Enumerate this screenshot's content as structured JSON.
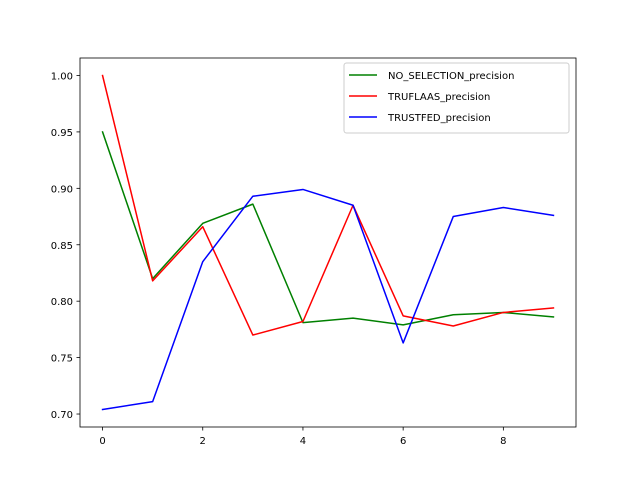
{
  "chart_data": {
    "type": "line",
    "title": "",
    "xlabel": "",
    "ylabel": "",
    "xlim": [
      -0.45,
      9.45
    ],
    "ylim": [
      0.6885,
      1.0155
    ],
    "x_ticks": [
      0,
      2,
      4,
      6,
      8
    ],
    "y_ticks": [
      0.7,
      0.75,
      0.8,
      0.85,
      0.9,
      0.95,
      1.0
    ],
    "y_tick_labels": [
      "0.70",
      "0.75",
      "0.80",
      "0.85",
      "0.90",
      "0.95",
      "1.00"
    ],
    "grid": false,
    "legend_position": "top-right",
    "x": [
      0,
      1,
      2,
      3,
      4,
      5,
      6,
      7,
      8,
      9
    ],
    "series": [
      {
        "name": "NO_SELECTION_precision",
        "color": "#008000",
        "values": [
          0.95,
          0.82,
          0.869,
          0.886,
          0.781,
          0.785,
          0.779,
          0.788,
          0.79,
          0.786
        ]
      },
      {
        "name": "TRUFLAAS_precision",
        "color": "#ff0000",
        "values": [
          1.0,
          0.818,
          0.866,
          0.77,
          0.782,
          0.885,
          0.787,
          0.778,
          0.79,
          0.794
        ]
      },
      {
        "name": "TRUSTFED_precision",
        "color": "#0000ff",
        "values": [
          0.704,
          0.711,
          0.835,
          0.893,
          0.899,
          0.885,
          0.763,
          0.875,
          0.883,
          0.876
        ]
      }
    ]
  }
}
